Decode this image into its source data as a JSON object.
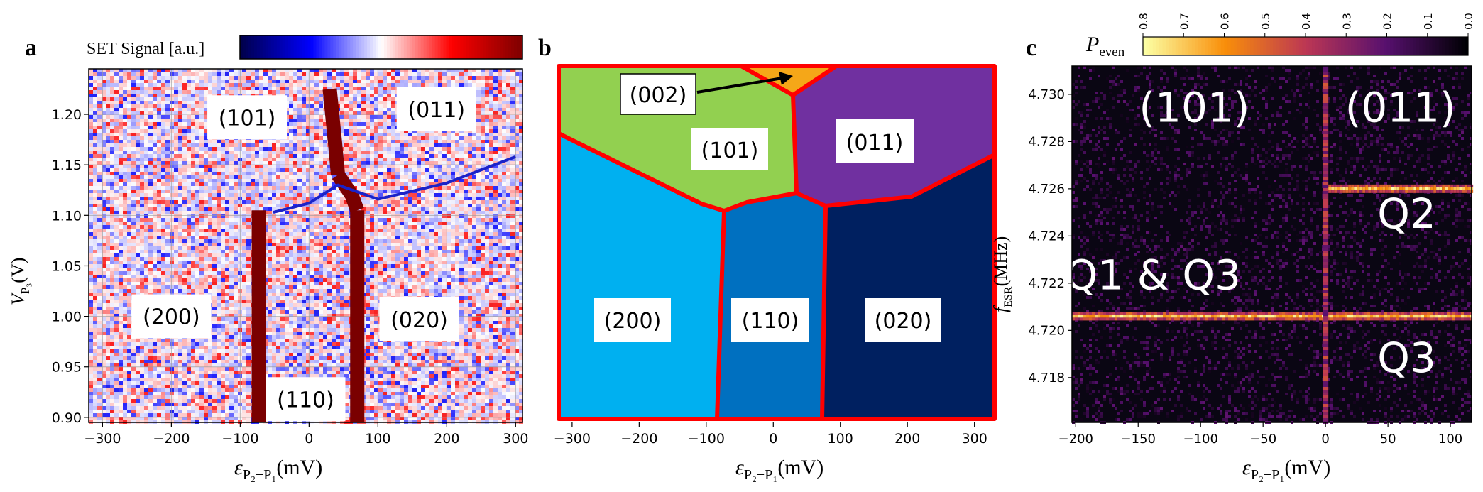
{
  "chart_data": [
    {
      "panel": "a",
      "type": "heatmap",
      "panel_label": "a",
      "colorbar_label": "SET Signal  [a.u.]",
      "xlabel": "ε",
      "xlabel_sub": "P₂−P₁",
      "xlabel_unit": "(mV)",
      "ylabel": "V",
      "ylabel_sub": "P₃",
      "ylabel_unit": "(V)",
      "xlim": [
        -320,
        310
      ],
      "ylim": [
        0.895,
        1.245
      ],
      "xticks": [
        -300,
        -200,
        -100,
        0,
        100,
        200,
        300
      ],
      "yticks": [
        0.9,
        0.95,
        1.0,
        1.05,
        1.1,
        1.15,
        1.2
      ],
      "xtick_labels": [
        "−300",
        "−200",
        "−100",
        "0",
        "100",
        "200",
        "300"
      ],
      "ytick_labels": [
        "0.90",
        "0.95",
        "1.00",
        "1.05",
        "1.10",
        "1.15",
        "1.20"
      ],
      "grid": true,
      "charge_state_labels": [
        {
          "text": "(101)",
          "x": -90,
          "y": 1.197
        },
        {
          "text": "(011)",
          "x": 185,
          "y": 1.205
        },
        {
          "text": "(200)",
          "x": -200,
          "y": 1.0
        },
        {
          "text": "(020)",
          "x": 160,
          "y": 0.997
        },
        {
          "text": "(110)",
          "x": -5,
          "y": 0.918
        }
      ],
      "transition_lines": [
        {
          "name": "left-vertical",
          "x": [
            -73,
            -73
          ],
          "y": [
            0.895,
            1.105
          ]
        },
        {
          "name": "right-vertical",
          "x": [
            70,
            70
          ],
          "y": [
            0.895,
            1.105
          ]
        },
        {
          "name": "upper-vertical",
          "x": [
            30,
            38,
            42
          ],
          "y": [
            1.225,
            1.17,
            1.14
          ]
        },
        {
          "name": "upper-right-branch",
          "x": [
            42,
            62,
            70
          ],
          "y": [
            1.14,
            1.12,
            1.105
          ]
        },
        {
          "name": "interdot-blue",
          "x": [
            -52,
            0,
            42,
            100,
            200,
            300
          ],
          "y": [
            1.103,
            1.112,
            1.13,
            1.116,
            1.132,
            1.158
          ]
        }
      ]
    },
    {
      "panel": "b",
      "type": "diagram",
      "panel_label": "b",
      "xlabel": "ε",
      "xlabel_sub": "P₂−P₁",
      "xlabel_unit": "(mV)",
      "xlim": [
        -320,
        330
      ],
      "xticks": [
        -300,
        -200,
        -100,
        0,
        100,
        200,
        300
      ],
      "xtick_labels": [
        "−300",
        "−200",
        "−100",
        "0",
        "100",
        "200",
        "300"
      ],
      "regions": [
        {
          "label": "(002)",
          "color": "#f5a718"
        },
        {
          "label": "(101)",
          "color": "#92d050"
        },
        {
          "label": "(011)",
          "color": "#7030a0"
        },
        {
          "label": "(200)",
          "color": "#00b0f0"
        },
        {
          "label": "(110)",
          "color": "#0070c0"
        },
        {
          "label": "(020)",
          "color": "#002060"
        }
      ],
      "boundary_color": "#ff0000"
    },
    {
      "panel": "c",
      "type": "heatmap",
      "panel_label": "c",
      "colorbar_label": "P",
      "colorbar_label_sub": "even",
      "colorbar_ticks": [
        "0.8",
        "0.7",
        "0.6",
        "0.5",
        "0.4",
        "0.3",
        "0.2",
        "0.1",
        "0.0"
      ],
      "colorbar_range": [
        0.8,
        0.0
      ],
      "xlabel": "ε",
      "xlabel_sub": "P₂−P₁",
      "xlabel_unit": "(mV)",
      "ylabel": "f",
      "ylabel_sub": "ESR",
      "ylabel_unit": "(MHz)",
      "xlim": [
        -203,
        117
      ],
      "ylim": [
        4.7161,
        4.7312
      ],
      "xticks": [
        -200,
        -150,
        -100,
        -50,
        0,
        50,
        100
      ],
      "xtick_labels": [
        "−200",
        "−150",
        "−100",
        "−50",
        "0",
        "50",
        "100"
      ],
      "yticks": [
        4.718,
        4.72,
        4.722,
        4.724,
        4.726,
        4.728,
        4.73
      ],
      "ytick_labels": [
        "4.718",
        "4.720",
        "4.722",
        "4.724",
        "4.726",
        "4.728",
        "4.730"
      ],
      "resonance_lines": [
        {
          "name": "Q1-Q3-resonance",
          "x": [
            -203,
            117
          ],
          "y": [
            4.7206,
            4.7206
          ]
        },
        {
          "name": "Q2-resonance",
          "x": [
            0,
            117
          ],
          "y": [
            4.726,
            4.726
          ]
        },
        {
          "name": "transition-vertical",
          "x": [
            0,
            0
          ],
          "y": [
            4.7161,
            4.7312
          ]
        }
      ],
      "annotations": [
        {
          "text": "(101)",
          "x": -105,
          "y": 4.7295
        },
        {
          "text": "(011)",
          "x": 60,
          "y": 4.7295
        },
        {
          "text": "Q2",
          "x": 65,
          "y": 4.725
        },
        {
          "text": "Q1 & Q3",
          "x": -138,
          "y": 4.7224
        },
        {
          "text": "Q3",
          "x": 65,
          "y": 4.7189
        }
      ]
    }
  ]
}
